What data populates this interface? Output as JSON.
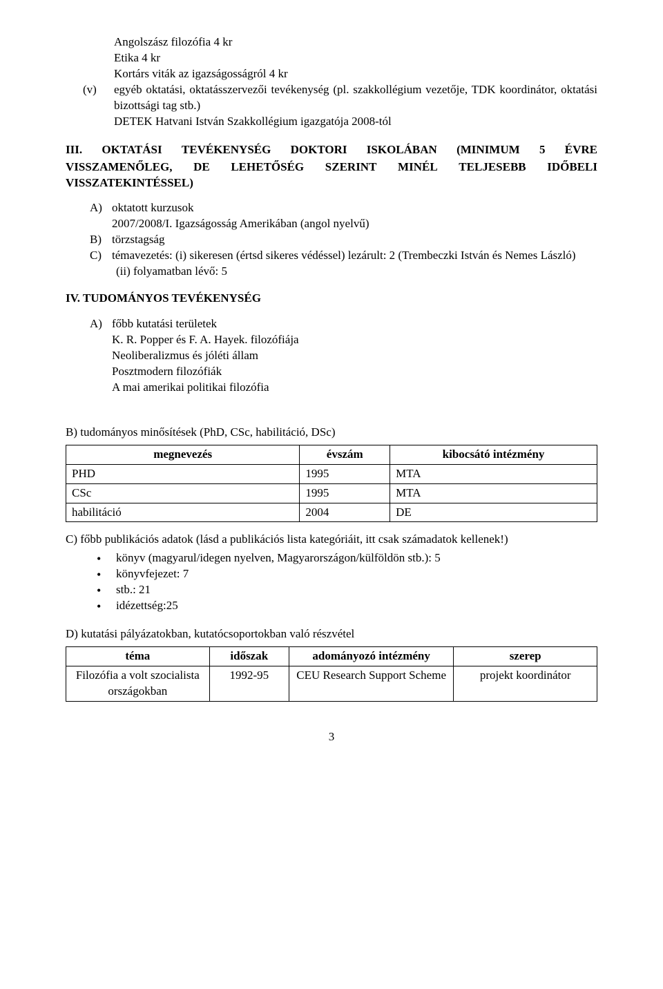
{
  "top": {
    "line1": "Angolszász filozófia 4 kr",
    "line2": "Etika 4 kr",
    "line3": "Kortárs viták az igazságosságról 4 kr"
  },
  "v": {
    "marker": "(v)",
    "text": "egyéb oktatási, oktatásszervezői tevékenység (pl. szakkollégium vezetője, TDK koordinátor, oktatási bizottsági tag stb.)",
    "line3": "DETEK Hatvani István Szakkollégium igazgatója 2008-tól"
  },
  "s3": {
    "roman": "III.",
    "t": {
      "a": "OKTATÁSI",
      "b": "TEVÉKENYSÉG",
      "c": "DOKTORI",
      "d": "ISKOLÁBAN",
      "e": "(MINIMUM",
      "f": "5",
      "g": "ÉVRE",
      "h": "VISSZAMENŐLEG,",
      "i": "DE",
      "j": "LEHETŐSÉG",
      "k": "SZERINT",
      "l": "MINÉL",
      "m": "TELJESEBB",
      "n": "IDŐBELI",
      "o": "VISSZATEKINTÉSSEL)"
    },
    "A": {
      "marker": "A)",
      "text": "oktatott kurzusok",
      "sub": "2007/2008/I. Igazságosság Amerikában (angol nyelvű)"
    },
    "B": {
      "marker": "B)",
      "text": "törzstagság"
    },
    "C": {
      "marker": "C)",
      "text": "témavezetés: (i) sikeresen (értsd sikeres védéssel) lezárult: 2 (Trembeczki István és Nemes László)",
      "sub": "(ii) folyamatban lévő: 5"
    }
  },
  "s4": {
    "title": "IV. TUDOMÁNYOS TEVÉKENYSÉG",
    "A": {
      "marker": "A)",
      "text": "főbb kutatási területek"
    },
    "lines": {
      "a": "K. R. Popper és F. A. Hayek. filozófiája",
      "b": "Neoliberalizmus és jóléti állam",
      "c": "Posztmodern filozófiák",
      "d": "A mai amerikai politikai filozófia"
    }
  },
  "secB": {
    "title": "B) tudományos minősítések (PhD, CSc, habilitáció, DSc)",
    "table": {
      "headers": [
        "megnevezés",
        "évszám",
        "kibocsátó intézmény"
      ],
      "colwidths": [
        "44%",
        "17%",
        "39%"
      ],
      "rows": [
        [
          "PHD",
          "1995",
          "MTA"
        ],
        [
          "CSc",
          "1995",
          "MTA"
        ],
        [
          "habilitáció",
          "2004",
          "DE"
        ]
      ]
    }
  },
  "secC": {
    "text": "C) főbb publikációs adatok (lásd a publikációs lista kategóriáit, itt csak számadatok kellenek!)",
    "bullets": [
      "könyv (magyarul/idegen nyelven, Magyarországon/külföldön stb.): 5",
      "könyvfejezet: 7",
      "stb.: 21",
      "idézettség:25"
    ]
  },
  "secD": {
    "title": "D) kutatási pályázatokban, kutatócsoportokban való részvétel",
    "table": {
      "headers": [
        "téma",
        "időszak",
        "adományozó intézmény",
        "szerep"
      ],
      "colwidths": [
        "27%",
        "15%",
        "31%",
        "27%"
      ],
      "rows": [
        [
          "Filozófia a volt szocialista országokban",
          "1992-95",
          "CEU Research Support Scheme",
          "projekt koordinátor"
        ]
      ],
      "align": [
        "center",
        "center",
        "center",
        "center"
      ]
    }
  },
  "pagenum": "3"
}
